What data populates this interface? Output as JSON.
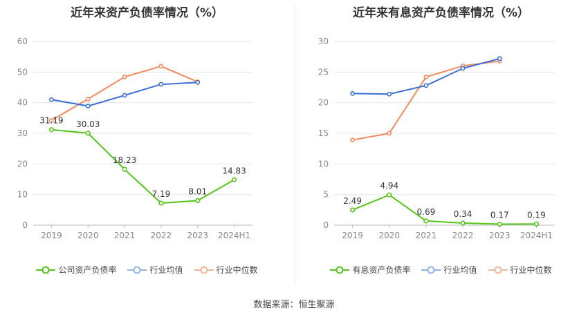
{
  "source_label": "数据来源：恒生聚源",
  "chart_data": [
    {
      "type": "line",
      "title": "近年来资产负债率情况（%）",
      "categories": [
        "2019",
        "2020",
        "2021",
        "2022",
        "2023",
        "2024H1"
      ],
      "ylim": [
        0,
        60
      ],
      "yticks": [
        0,
        10,
        20,
        30,
        40,
        50,
        60
      ],
      "grid": true,
      "legend_position": "bottom",
      "series": [
        {
          "name": "公司资产负债率",
          "color": "#52c41a",
          "labeled": true,
          "values": [
            31.19,
            30.03,
            18.23,
            7.19,
            8.01,
            14.83
          ]
        },
        {
          "name": "行业均值",
          "color": "#3a6fd8",
          "labeled": false,
          "values": [
            41.0,
            38.9,
            42.4,
            46.0,
            46.6,
            null
          ]
        },
        {
          "name": "行业中位数",
          "color": "#f08a5d",
          "labeled": false,
          "values": [
            34.2,
            41.2,
            48.4,
            51.9,
            46.8,
            null
          ]
        }
      ],
      "legend_swatch_colors": [
        "#52c41a",
        "#8fb3ea",
        "#f5b79a"
      ]
    },
    {
      "type": "line",
      "title": "近年来有息资产负债率情况（%）",
      "categories": [
        "2019",
        "2020",
        "2021",
        "2022",
        "2023",
        "2024H1"
      ],
      "ylim": [
        0,
        30
      ],
      "yticks": [
        0,
        5,
        10,
        15,
        20,
        25,
        30
      ],
      "grid": true,
      "legend_position": "bottom",
      "series": [
        {
          "name": "有息资产负债率",
          "color": "#52c41a",
          "labeled": true,
          "values": [
            2.49,
            4.94,
            0.69,
            0.34,
            0.17,
            0.19
          ]
        },
        {
          "name": "行业均值",
          "color": "#3a6fd8",
          "labeled": false,
          "values": [
            21.5,
            21.4,
            22.8,
            25.6,
            27.2,
            null
          ]
        },
        {
          "name": "行业中位数",
          "color": "#f08a5d",
          "labeled": false,
          "values": [
            13.9,
            15.0,
            24.2,
            26.0,
            26.8,
            null
          ]
        }
      ],
      "legend_swatch_colors": [
        "#52c41a",
        "#8fb3ea",
        "#f5b79a"
      ]
    }
  ]
}
